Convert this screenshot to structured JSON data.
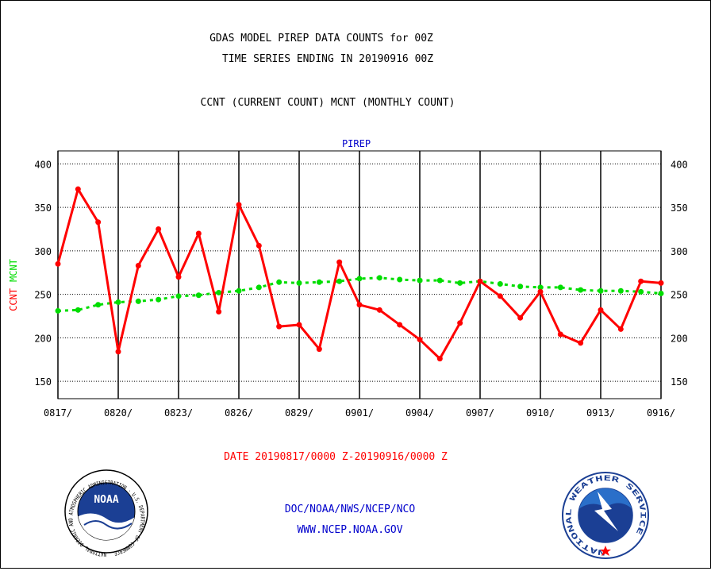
{
  "header": {
    "line1": "GDAS MODEL PIREP DATA COUNTS for 00Z",
    "line2": "TIME SERIES ENDING IN 20190916 00Z",
    "line3": "CCNT (CURRENT COUNT) MCNT (MONTHLY COUNT)"
  },
  "footer": {
    "date_range": "DATE 20190817/0000 Z-20190916/0000 Z",
    "org": "DOC/NOAA/NWS/NCEP/NCO",
    "url": "WWW.NCEP.NOAA.GOV"
  },
  "logos": {
    "noaa": {
      "center": "NOAA",
      "ring_text": "NATIONAL OCEANIC AND ATMOSPHERIC ADMINISTRATION · U.S. DEPARTMENT OF COMMERCE"
    },
    "nws": {
      "ring_text": "NATIONAL WEATHER SERVICE"
    }
  },
  "colors": {
    "ccnt": "#ff0000",
    "mcnt": "#00dd00",
    "title": "#000000",
    "accent_text": "#0000cc",
    "date_text": "#ff0000",
    "noaa_blue": "#1b3f94",
    "nws_blue": "#2a6fc9"
  },
  "chart_data": {
    "type": "line",
    "title": "PIREP",
    "ylabel_left": "CCNT",
    "ylabel_right": "MCNT",
    "ylim": [
      130,
      415
    ],
    "yticks": [
      150,
      200,
      250,
      300,
      350,
      400
    ],
    "xtick_labels": [
      "0817/",
      "0820/",
      "0823/",
      "0826/",
      "0829/",
      "0901/",
      "0904/",
      "0907/",
      "0910/",
      "0913/",
      "0916/"
    ],
    "x": [
      "0817",
      "0818",
      "0819",
      "0820",
      "0821",
      "0822",
      "0823",
      "0824",
      "0825",
      "0826",
      "0827",
      "0828",
      "0829",
      "0830",
      "0831",
      "0901",
      "0902",
      "0903",
      "0904",
      "0905",
      "0906",
      "0907",
      "0908",
      "0909",
      "0910",
      "0911",
      "0912",
      "0913",
      "0914",
      "0915",
      "0916"
    ],
    "grid": true,
    "series": [
      {
        "name": "CCNT",
        "values": [
          285,
          371,
          333,
          184,
          283,
          325,
          270,
          320,
          230,
          353,
          306,
          213,
          215,
          187,
          287,
          238,
          232,
          215,
          198,
          176,
          217,
          265,
          248,
          223,
          253,
          204,
          194,
          232,
          210,
          265,
          263
        ]
      },
      {
        "name": "MCNT",
        "values": [
          231,
          232,
          238,
          241,
          242,
          244,
          248,
          249,
          252,
          254,
          258,
          264,
          263,
          264,
          265,
          268,
          269,
          267,
          266,
          266,
          263,
          265,
          262,
          259,
          258,
          258,
          255,
          254,
          254,
          253,
          251
        ]
      }
    ]
  }
}
